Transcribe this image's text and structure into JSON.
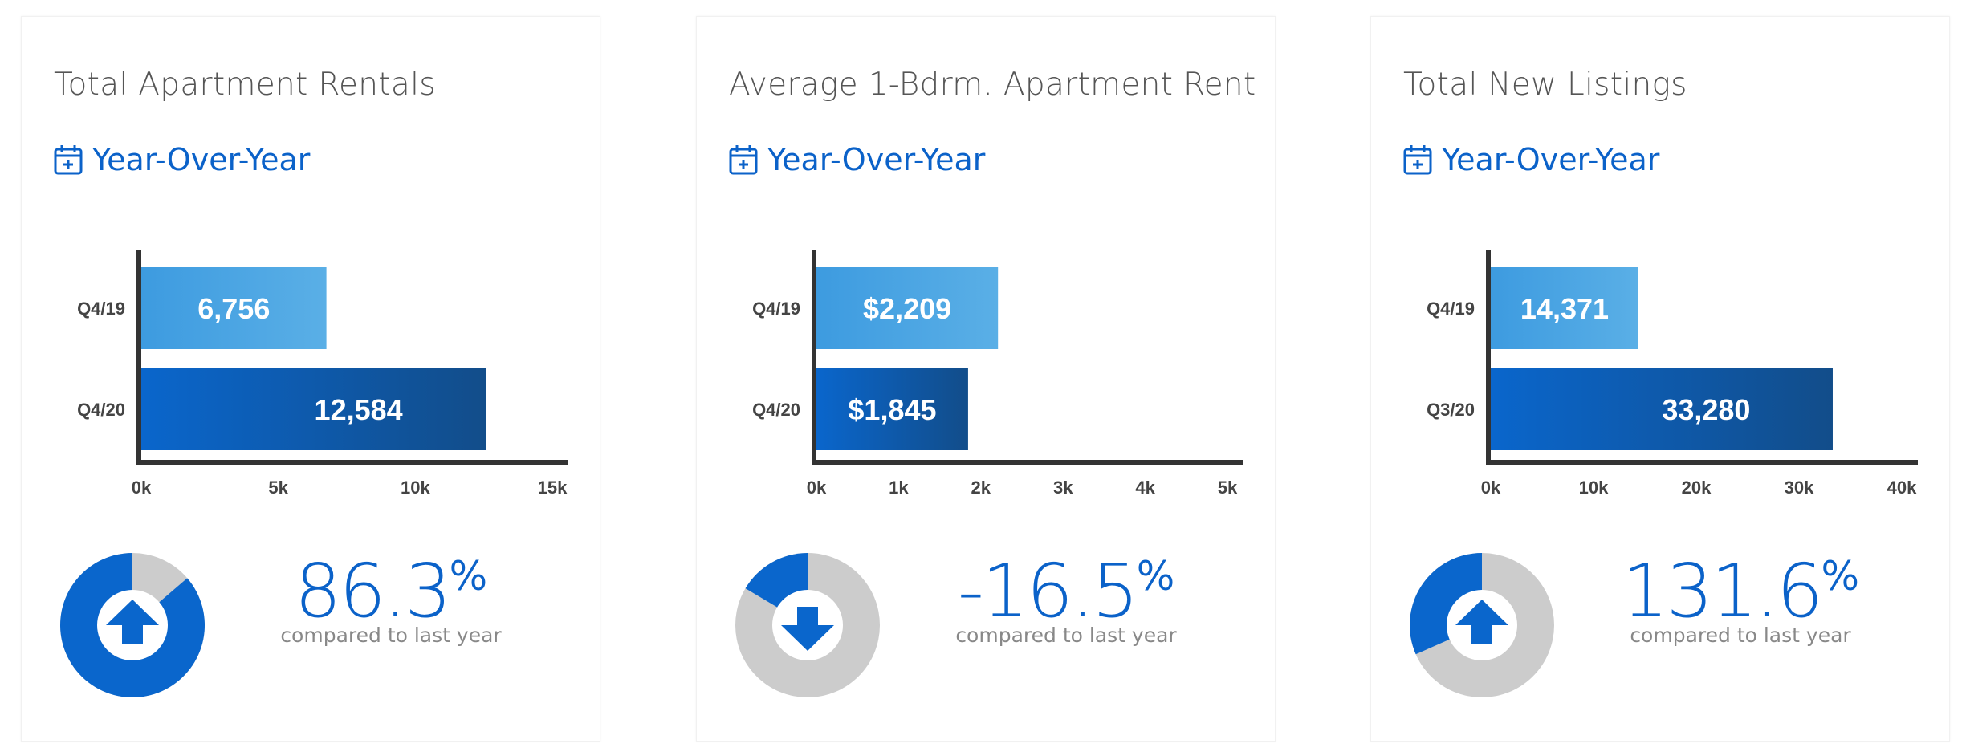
{
  "cards": [
    {
      "title": "Total Apartment Rentals",
      "period_label": "Year-Over-Year",
      "period_icon": "calendar-plus-icon",
      "change_value": "86.3",
      "change_unit": "%",
      "change_caption": "compared to last year",
      "change_direction": "up",
      "direction_icon": "arrow-up-icon",
      "donut_fill_fraction": 0.863
    },
    {
      "title": "Average 1-Bdrm. Apartment Rent",
      "period_label": "Year-Over-Year",
      "period_icon": "calendar-plus-icon",
      "change_value": "-16.5",
      "change_unit": "%",
      "change_caption": "compared to last year",
      "change_direction": "down",
      "direction_icon": "arrow-down-icon",
      "donut_fill_fraction": 0.165
    },
    {
      "title": "Total New Listings",
      "period_label": "Year-Over-Year",
      "period_icon": "calendar-plus-icon",
      "change_value": "131.6",
      "change_unit": "%",
      "change_caption": "compared to last year",
      "change_direction": "up",
      "direction_icon": "arrow-up-icon",
      "donut_fill_fraction": 0.316
    }
  ],
  "colors": {
    "accent_blue": "#0b62c9",
    "bar_light_start": "#3d9be0",
    "bar_light_end": "#5aafe6",
    "bar_dark_start": "#0a66cc",
    "bar_dark_end": "#124d8a",
    "axis": "#333333",
    "donut_track": "#cccccc",
    "donut_fill": "#0a66cc"
  },
  "chart_data": [
    {
      "type": "bar",
      "orientation": "horizontal",
      "categories": [
        "Q4/19",
        "Q4/20"
      ],
      "values": [
        6756,
        12584
      ],
      "value_labels": [
        "6,756",
        "12,584"
      ],
      "xlim": [
        0,
        15000
      ],
      "xticks": [
        "0k",
        "5k",
        "10k",
        "15k"
      ],
      "xtick_values": [
        0,
        5000,
        10000,
        15000
      ],
      "grid": false,
      "title": "",
      "xlabel": "",
      "ylabel": ""
    },
    {
      "type": "bar",
      "orientation": "horizontal",
      "categories": [
        "Q4/19",
        "Q4/20"
      ],
      "values": [
        2209,
        1845
      ],
      "value_labels": [
        "$2,209",
        "$1,845"
      ],
      "xlim": [
        0,
        5000
      ],
      "xticks": [
        "0k",
        "1k",
        "2k",
        "3k",
        "4k",
        "5k"
      ],
      "xtick_values": [
        0,
        1000,
        2000,
        3000,
        4000,
        5000
      ],
      "grid": false,
      "title": "",
      "xlabel": "",
      "ylabel": ""
    },
    {
      "type": "bar",
      "orientation": "horizontal",
      "categories": [
        "Q4/19",
        "Q3/20"
      ],
      "values": [
        14371,
        33280
      ],
      "value_labels": [
        "14,371",
        "33,280"
      ],
      "xlim": [
        0,
        40000
      ],
      "xticks": [
        "0k",
        "10k",
        "20k",
        "30k",
        "40k"
      ],
      "xtick_values": [
        0,
        10000,
        20000,
        30000,
        40000
      ],
      "grid": false,
      "title": "",
      "xlabel": "",
      "ylabel": ""
    }
  ]
}
